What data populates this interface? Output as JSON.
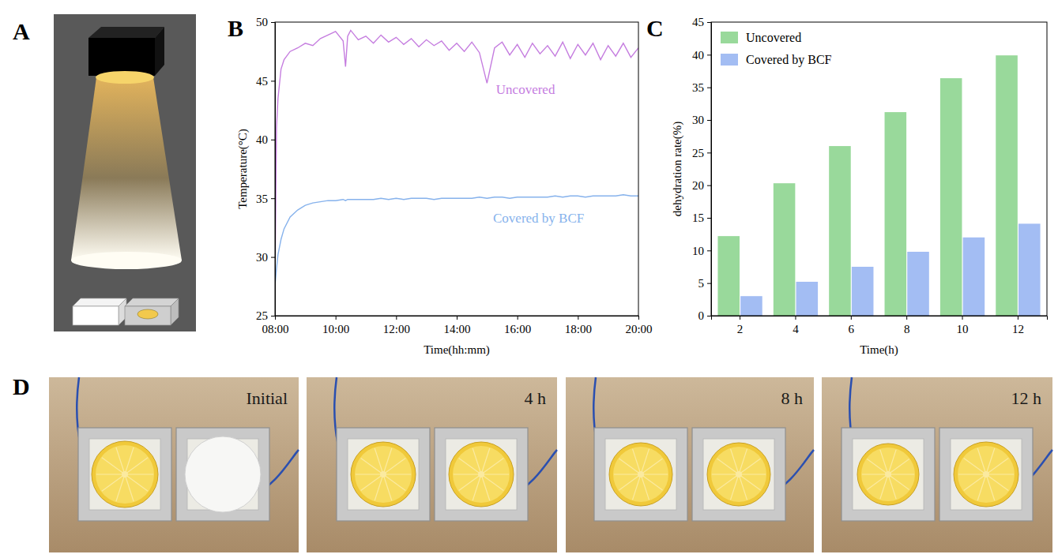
{
  "chart_data": [
    {
      "type": "line",
      "x_label": "Time(hh:mm)",
      "y_label": "Temperature(°C)",
      "x": [
        8.0,
        8.05,
        8.1,
        8.2,
        8.3,
        8.5,
        8.75,
        9.0,
        9.25,
        9.5,
        9.75,
        10.0,
        10.25,
        10.33,
        10.4,
        10.5,
        10.75,
        11.0,
        11.25,
        11.5,
        11.75,
        12.0,
        12.25,
        12.5,
        12.75,
        13.0,
        13.25,
        13.5,
        13.75,
        14.0,
        14.25,
        14.5,
        14.75,
        15.0,
        15.25,
        15.5,
        15.75,
        16.0,
        16.25,
        16.5,
        16.75,
        17.0,
        17.25,
        17.5,
        17.75,
        18.0,
        18.25,
        18.5,
        18.75,
        19.0,
        19.25,
        19.5,
        19.75,
        20.0
      ],
      "xlim": [
        8,
        20
      ],
      "xticks": [
        {
          "value": 8,
          "label": "08:00"
        },
        {
          "value": 10,
          "label": "10:00"
        },
        {
          "value": 12,
          "label": "12:00"
        },
        {
          "value": 14,
          "label": "14:00"
        },
        {
          "value": 16,
          "label": "16:00"
        },
        {
          "value": 18,
          "label": "18:00"
        },
        {
          "value": 20,
          "label": "20:00"
        }
      ],
      "ylim": [
        25,
        50
      ],
      "yticks": [
        25,
        30,
        35,
        40,
        45,
        50
      ],
      "series": [
        {
          "name": "Uncovered",
          "color": "#c57ddf",
          "values": [
            27.5,
            41,
            43.5,
            46,
            46.8,
            47.5,
            47.8,
            48.2,
            48.0,
            48.6,
            48.9,
            49.2,
            48.4,
            46.2,
            48.8,
            49.3,
            48.5,
            48.8,
            48.2,
            48.9,
            48.3,
            48.7,
            48.1,
            48.6,
            47.9,
            48.5,
            48.0,
            48.4,
            47.6,
            48.2,
            47.5,
            48.3,
            47.4,
            44.8,
            47.8,
            48.3,
            47.2,
            48.1,
            47.0,
            48.2,
            47.3,
            48.0,
            47.1,
            48.3,
            46.9,
            48.1,
            47.2,
            48.2,
            46.8,
            48.0,
            47.1,
            48.2,
            47.0,
            47.8
          ]
        },
        {
          "name": "Covered by BCF",
          "color": "#86b2ec",
          "values": [
            27.5,
            29,
            30.2,
            31.5,
            32.4,
            33.4,
            34.0,
            34.4,
            34.6,
            34.7,
            34.8,
            34.8,
            34.9,
            34.8,
            34.9,
            34.9,
            34.9,
            34.9,
            34.9,
            35.0,
            34.9,
            35.0,
            34.9,
            35.0,
            35.0,
            35.0,
            34.9,
            35.0,
            35.0,
            35.0,
            35.0,
            35.0,
            35.1,
            35.0,
            35.1,
            35.1,
            35.0,
            35.1,
            35.1,
            35.1,
            35.1,
            35.1,
            35.2,
            35.1,
            35.2,
            35.2,
            35.1,
            35.2,
            35.2,
            35.2,
            35.2,
            35.3,
            35.2,
            35.2
          ]
        }
      ]
    },
    {
      "type": "bar",
      "x_label": "Time(h)",
      "y_label": "dehydration rate(%)",
      "categories": [
        "2",
        "4",
        "6",
        "8",
        "10",
        "12"
      ],
      "ylim": [
        0,
        45
      ],
      "yticks": [
        0,
        5,
        10,
        15,
        20,
        25,
        30,
        35,
        40,
        45
      ],
      "legend": "upper left",
      "series": [
        {
          "name": "Uncovered",
          "color": "#99d99b",
          "values": [
            12.2,
            20.3,
            26.0,
            31.2,
            36.4,
            39.9
          ]
        },
        {
          "name": "Covered by BCF",
          "color": "#a3bdf3",
          "values": [
            3.0,
            5.2,
            7.5,
            9.8,
            12.0,
            14.1
          ]
        }
      ]
    }
  ],
  "panel_labels": [
    "A",
    "B",
    "C",
    "D"
  ],
  "panel_d": {
    "labels": [
      "Initial",
      "4 h",
      "8 h",
      "12 h"
    ]
  }
}
